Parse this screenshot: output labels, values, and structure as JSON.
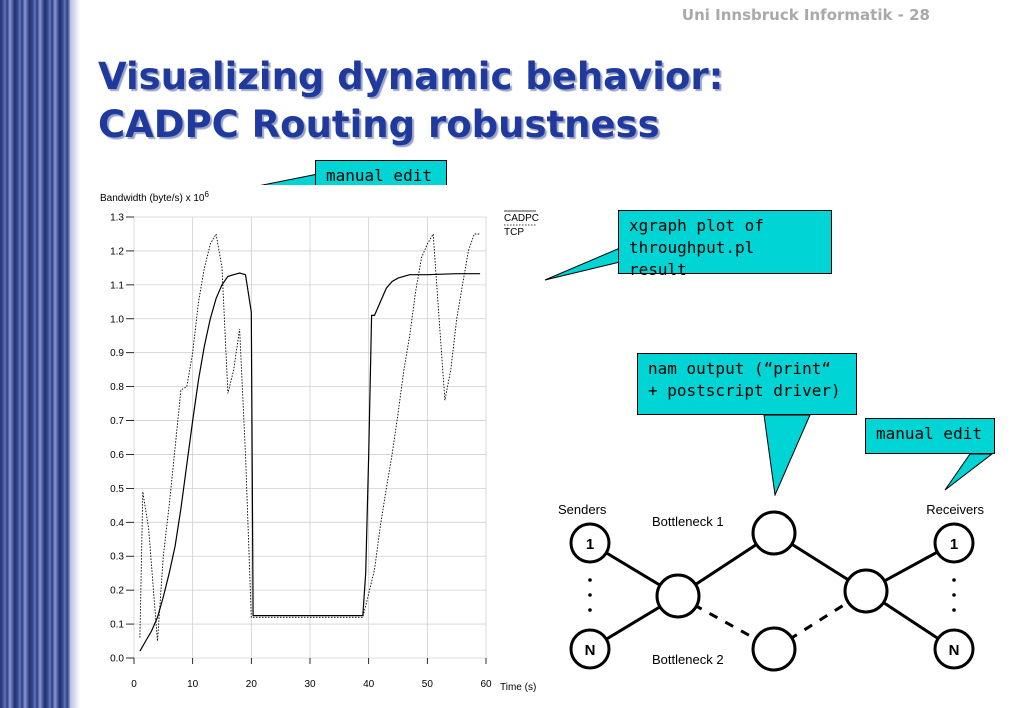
{
  "slide": {
    "header": "Uni Innsbruck Informatik - 28",
    "title_line1": "Visualizing dynamic behavior:",
    "title_line2": "CADPC Routing robustness"
  },
  "callouts": {
    "manual_edit_top": "manual edit",
    "xgraph_line1": "xgraph plot of",
    "xgraph_line2": "throughput.pl result",
    "nam_line1": "nam output (“print“",
    "nam_line2": "+ postscript driver)",
    "manual_edit_right": "manual edit"
  },
  "chart_data": {
    "type": "line",
    "ylabel": "Bandwidth (byte/s) x 10",
    "ylabel_exp": "6",
    "xlabel": "Time (s)",
    "xlim": [
      0,
      60
    ],
    "ylim": [
      0,
      1.3
    ],
    "x_ticks": [
      "0",
      "10",
      "20",
      "30",
      "40",
      "50",
      "60"
    ],
    "y_ticks": [
      "0.0",
      "0.1",
      "0.2",
      "0.3",
      "0.4",
      "0.5",
      "0.6",
      "0.7",
      "0.8",
      "0.9",
      "1.0",
      "1.1",
      "1.2",
      "1.3"
    ],
    "grid": true,
    "legend_position": "top-right",
    "series": [
      {
        "name": "CADPC",
        "style": "solid",
        "points": [
          [
            1,
            0.02
          ],
          [
            2,
            0.05
          ],
          [
            3,
            0.08
          ],
          [
            4,
            0.12
          ],
          [
            5,
            0.18
          ],
          [
            6,
            0.25
          ],
          [
            7,
            0.33
          ],
          [
            8,
            0.44
          ],
          [
            9,
            0.57
          ],
          [
            10,
            0.7
          ],
          [
            11,
            0.82
          ],
          [
            12,
            0.92
          ],
          [
            13,
            1.0
          ],
          [
            14,
            1.06
          ],
          [
            15,
            1.1
          ],
          [
            16,
            1.125
          ],
          [
            17,
            1.13
          ],
          [
            18,
            1.135
          ],
          [
            19,
            1.13
          ],
          [
            20,
            1.02
          ],
          [
            20.3,
            0.125
          ],
          [
            25,
            0.125
          ],
          [
            30,
            0.125
          ],
          [
            35,
            0.125
          ],
          [
            39,
            0.125
          ],
          [
            39.5,
            0.25
          ],
          [
            40,
            0.6
          ],
          [
            40.5,
            1.01
          ],
          [
            41,
            1.01
          ],
          [
            42,
            1.05
          ],
          [
            43,
            1.09
          ],
          [
            44,
            1.11
          ],
          [
            45,
            1.12
          ],
          [
            47,
            1.13
          ],
          [
            50,
            1.13
          ],
          [
            55,
            1.133
          ],
          [
            59,
            1.133
          ]
        ]
      },
      {
        "name": "TCP",
        "style": "dotted",
        "points": [
          [
            1,
            0.06
          ],
          [
            1.5,
            0.49
          ],
          [
            2.5,
            0.38
          ],
          [
            3.5,
            0.16
          ],
          [
            4,
            0.05
          ],
          [
            5,
            0.3
          ],
          [
            6,
            0.45
          ],
          [
            7,
            0.62
          ],
          [
            8,
            0.79
          ],
          [
            9,
            0.8
          ],
          [
            10,
            0.9
          ],
          [
            11,
            1.05
          ],
          [
            12,
            1.15
          ],
          [
            13,
            1.22
          ],
          [
            14,
            1.25
          ],
          [
            15,
            1.15
          ],
          [
            16,
            0.78
          ],
          [
            17,
            0.85
          ],
          [
            18,
            0.97
          ],
          [
            19,
            0.6
          ],
          [
            20,
            0.12
          ],
          [
            25,
            0.12
          ],
          [
            30,
            0.12
          ],
          [
            35,
            0.12
          ],
          [
            39,
            0.12
          ],
          [
            40,
            0.19
          ],
          [
            41,
            0.26
          ],
          [
            42,
            0.39
          ],
          [
            43,
            0.5
          ],
          [
            44,
            0.6
          ],
          [
            45,
            0.72
          ],
          [
            46,
            0.85
          ],
          [
            47,
            0.95
          ],
          [
            48,
            1.08
          ],
          [
            49,
            1.18
          ],
          [
            50,
            1.22
          ],
          [
            51,
            1.25
          ],
          [
            52,
            1.0
          ],
          [
            53,
            0.76
          ],
          [
            54,
            0.85
          ],
          [
            55,
            1.0
          ],
          [
            56,
            1.1
          ],
          [
            57,
            1.2
          ],
          [
            58,
            1.25
          ],
          [
            59,
            1.25
          ]
        ]
      }
    ]
  },
  "network": {
    "senders_label": "Senders",
    "receivers_label": "Receivers",
    "bottleneck1_label": "Bottleneck 1",
    "bottleneck2_label": "Bottleneck 2",
    "sender_top": "1",
    "sender_bottom": "N",
    "receiver_top": "1",
    "receiver_bottom": "N"
  }
}
